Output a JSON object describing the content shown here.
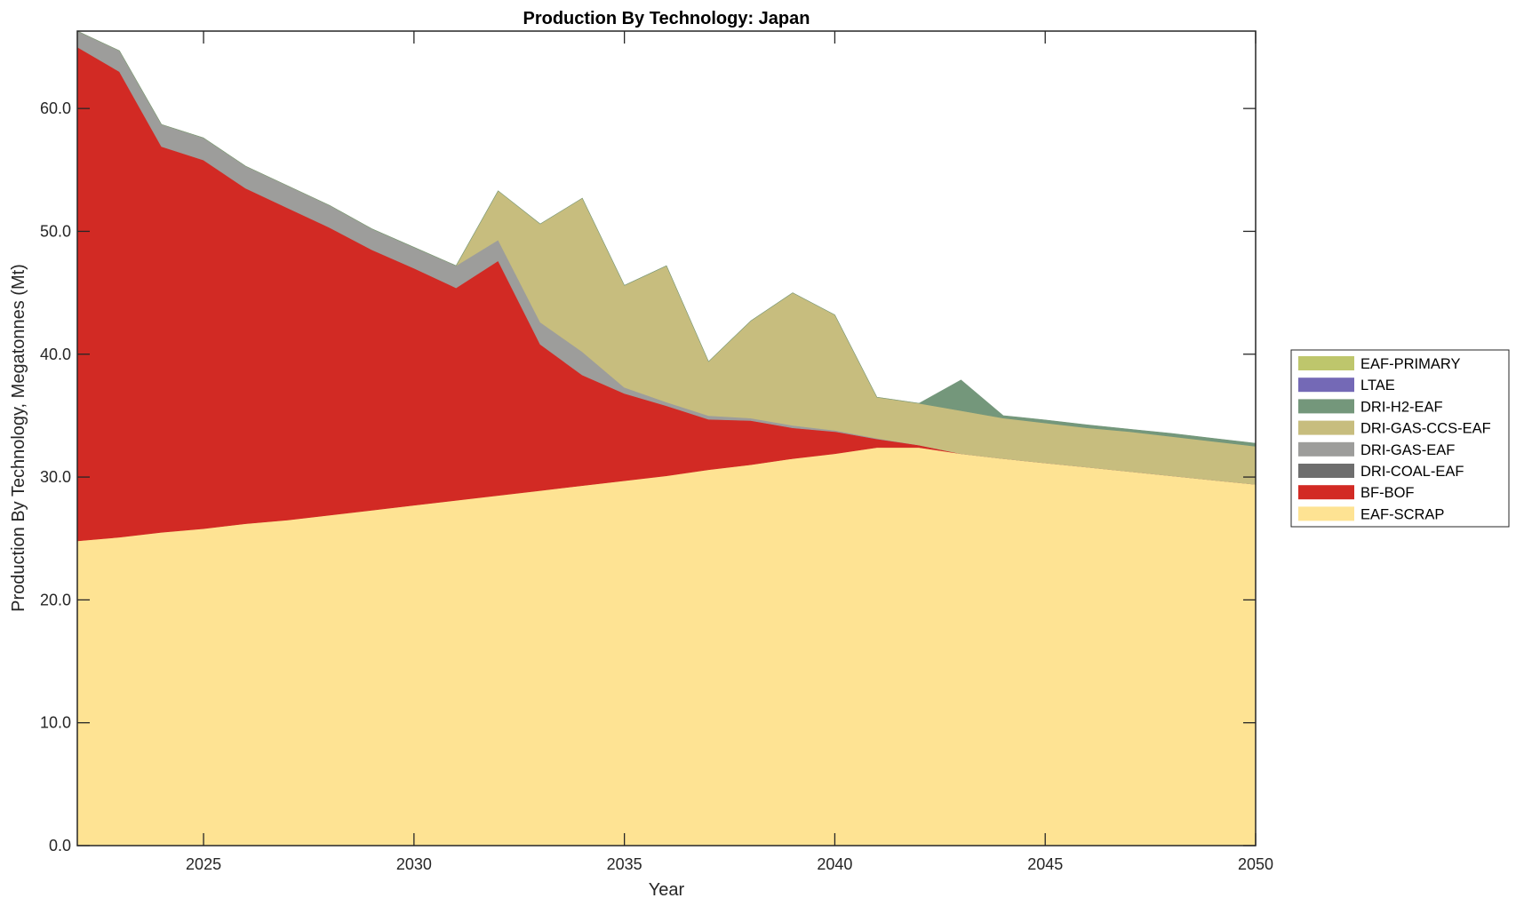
{
  "chart_data": {
    "type": "area",
    "stacked": true,
    "title": "Production By Technology: Japan",
    "xlabel": "Year",
    "ylabel": "Production By Technology, Megatonnes (Mt)",
    "xlim": [
      2022,
      2050
    ],
    "ylim": [
      0,
      66.3
    ],
    "xticks": [
      2025,
      2030,
      2035,
      2040,
      2045,
      2050
    ],
    "xtick_labels": [
      "2025",
      "2030",
      "2035",
      "2040",
      "2045",
      "2050"
    ],
    "yticks": [
      0,
      10,
      20,
      30,
      40,
      50,
      60
    ],
    "ytick_labels": [
      "0.0",
      "10.0",
      "20.0",
      "30.0",
      "40.0",
      "50.0",
      "60.0"
    ],
    "grid": false,
    "legend_position": "right",
    "x": [
      2022,
      2023,
      2024,
      2025,
      2026,
      2027,
      2028,
      2029,
      2030,
      2031,
      2032,
      2033,
      2034,
      2035,
      2036,
      2037,
      2038,
      2039,
      2040,
      2041,
      2042,
      2043,
      2044,
      2045,
      2046,
      2047,
      2048,
      2049,
      2050
    ],
    "series": [
      {
        "name": "EAF-SCRAP",
        "color": "#fee393",
        "values": [
          24.8,
          25.1,
          25.5,
          25.8,
          26.2,
          26.5,
          26.9,
          27.3,
          27.7,
          28.1,
          28.5,
          28.9,
          29.3,
          29.7,
          30.1,
          30.6,
          31.0,
          31.5,
          31.9,
          32.4,
          32.4,
          31.9,
          31.5,
          31.15,
          30.8,
          30.45,
          30.1,
          29.75,
          29.4
        ]
      },
      {
        "name": "BF-BOF",
        "color": "#d22a24",
        "values": [
          40.2,
          37.9,
          31.4,
          30.0,
          27.3,
          25.4,
          23.4,
          21.2,
          19.3,
          17.3,
          19.1,
          11.9,
          9.0,
          7.1,
          5.7,
          4.1,
          3.6,
          2.5,
          1.8,
          0.7,
          0.2,
          0,
          0,
          0,
          0,
          0,
          0,
          0,
          0
        ]
      },
      {
        "name": "DRI-COAL-EAF",
        "color": "#6e6e6e",
        "values": [
          0,
          0,
          0,
          0,
          0,
          0,
          0,
          0,
          0,
          0,
          0,
          0,
          0,
          0,
          0,
          0,
          0,
          0,
          0,
          0,
          0,
          0,
          0,
          0,
          0,
          0,
          0,
          0,
          0
        ]
      },
      {
        "name": "DRI-GAS-EAF",
        "color": "#9d9d9b",
        "values": [
          1.3,
          1.7,
          1.8,
          1.8,
          1.8,
          1.8,
          1.8,
          1.7,
          1.7,
          1.8,
          1.7,
          1.8,
          1.9,
          0.5,
          0.3,
          0.3,
          0.2,
          0.2,
          0.1,
          0.05,
          0,
          0,
          0,
          0,
          0,
          0,
          0,
          0,
          0
        ]
      },
      {
        "name": "DRI-GAS-CCS-EAF",
        "color": "#c7bd7e",
        "values": [
          0,
          0,
          0,
          0,
          0,
          0,
          0,
          0,
          0,
          0,
          4.0,
          8.0,
          12.5,
          8.3,
          11.1,
          4.4,
          7.9,
          10.8,
          9.4,
          3.35,
          3.4,
          3.5,
          3.3,
          3.25,
          3.2,
          3.25,
          3.2,
          3.15,
          3.1
        ]
      },
      {
        "name": "DRI-H2-EAF",
        "color": "#74977b",
        "values": [
          0,
          0,
          0,
          0,
          0,
          0,
          0,
          0,
          0,
          0,
          0,
          0,
          0,
          0,
          0,
          0,
          0,
          0,
          0,
          0,
          0,
          2.5,
          0.2,
          0.25,
          0.25,
          0.2,
          0.25,
          0.25,
          0.25
        ]
      },
      {
        "name": "LTAE",
        "color": "#7469b6",
        "values": [
          0,
          0,
          0,
          0,
          0,
          0,
          0,
          0,
          0,
          0,
          0,
          0,
          0,
          0,
          0,
          0,
          0,
          0,
          0,
          0,
          0,
          0,
          0,
          0,
          0,
          0,
          0,
          0,
          0
        ]
      },
      {
        "name": "EAF-PRIMARY",
        "color": "#bec66c",
        "values": [
          0,
          0,
          0,
          0,
          0,
          0,
          0,
          0,
          0,
          0,
          0,
          0,
          0,
          0,
          0,
          0,
          0,
          0,
          0,
          0,
          0,
          0,
          0,
          0,
          0,
          0,
          0,
          0,
          0
        ]
      }
    ],
    "legend": [
      {
        "label": "EAF-PRIMARY",
        "color": "#bec66c"
      },
      {
        "label": "LTAE",
        "color": "#7469b6"
      },
      {
        "label": "DRI-H2-EAF",
        "color": "#74977b"
      },
      {
        "label": "DRI-GAS-CCS-EAF",
        "color": "#c7bd7e"
      },
      {
        "label": "DRI-GAS-EAF",
        "color": "#9d9d9b"
      },
      {
        "label": "DRI-COAL-EAF",
        "color": "#6e6e6e"
      },
      {
        "label": "BF-BOF",
        "color": "#d22a24"
      },
      {
        "label": "EAF-SCRAP",
        "color": "#fee393"
      }
    ]
  }
}
